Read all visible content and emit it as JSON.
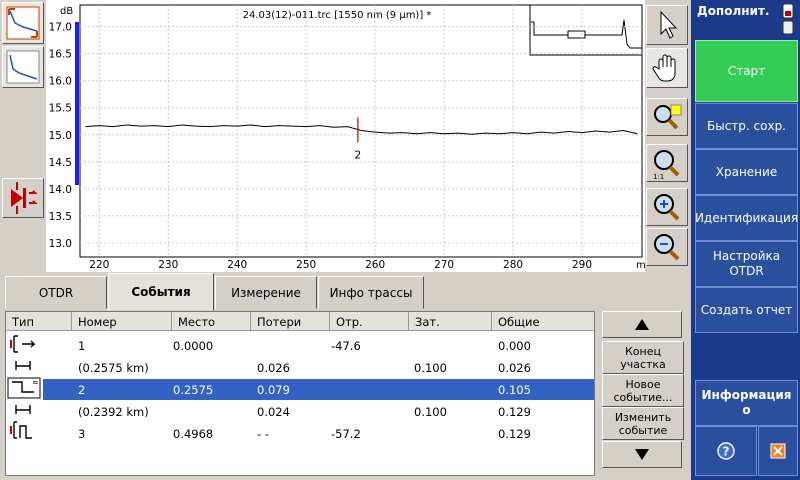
{
  "trace": {
    "title": "24.03(12)-011.trc [1550 nm (9 µm)] *",
    "y_unit": "dB",
    "x_unit": "m",
    "xlim": [
      217.2,
      298.7
    ],
    "ylim": [
      12.74,
      17.4
    ],
    "xticks": [
      220,
      230,
      240,
      250,
      260,
      270,
      280,
      290
    ],
    "yticks": [
      {
        "value": 17,
        "label": "17.0"
      },
      16.5,
      {
        "value": 16,
        "label": "16.0"
      },
      15.5,
      {
        "value": 15,
        "label": "15.0"
      },
      14.5,
      {
        "value": 14,
        "label": "14.0"
      },
      13.5,
      {
        "value": 13,
        "label": "13.0"
      }
    ],
    "grid": true,
    "color": "#000000",
    "x": [
      218,
      220,
      222,
      224,
      226,
      228,
      230,
      232,
      234,
      236,
      238,
      240,
      242,
      244,
      246,
      248,
      250,
      252,
      254,
      256,
      258,
      260,
      262,
      264,
      266,
      268,
      270,
      272,
      274,
      276,
      278,
      280,
      282,
      284,
      286,
      288,
      290,
      292,
      294,
      296,
      298
    ],
    "values": [
      15.15,
      15.17,
      15.15,
      15.18,
      15.16,
      15.17,
      15.15,
      15.18,
      15.16,
      15.15,
      15.17,
      15.16,
      15.18,
      15.15,
      15.17,
      15.16,
      15.15,
      15.17,
      15.14,
      15.15,
      15.08,
      15.05,
      15.03,
      15.04,
      15.02,
      15.04,
      15.02,
      15.03,
      15.01,
      15.03,
      15.02,
      15.04,
      15.02,
      15.05,
      15.03,
      15.06,
      15.04,
      15.07,
      15.05,
      15.08,
      15.02
    ],
    "marker": {
      "x": 257.5,
      "label": "2",
      "color": "#c00000"
    }
  },
  "tabs": [
    "OTDR",
    "События",
    "Измерение",
    "Инфо трассы"
  ],
  "active_tab": 1,
  "table": {
    "columns": [
      "Тип",
      "Номер",
      "Место",
      "Потери",
      "Отр.",
      "Зат.",
      "Общие"
    ],
    "rows": [
      [
        "1",
        "0.0000",
        null,
        "-47.6",
        null,
        "0.000"
      ],
      [
        "(0.2575 km)",
        null,
        "0.026",
        null,
        "0.100",
        "0.026"
      ],
      [
        "2",
        "0.2575",
        "0.079",
        null,
        null,
        "0.105"
      ],
      [
        "(0.2392 km)",
        null,
        "0.024",
        null,
        "0.100",
        "0.129"
      ],
      [
        "3",
        "0.4968",
        "- -",
        "-57.2",
        null,
        "0.129"
      ]
    ],
    "selected_row": 2
  },
  "side_buttons": [
    [
      "Конец",
      "участка"
    ],
    [
      "Новое",
      "событие..."
    ],
    [
      "Изменить",
      "событие"
    ]
  ],
  "menu": {
    "title": "Дополнит.",
    "items": [
      [
        "Старт"
      ],
      [
        "Быстр. сохр."
      ],
      [
        "Хранение"
      ],
      [
        "Идентификация"
      ],
      [
        "Настройка",
        "OTDR"
      ],
      [
        "Создать отчет"
      ]
    ],
    "info": "Информация о"
  }
}
